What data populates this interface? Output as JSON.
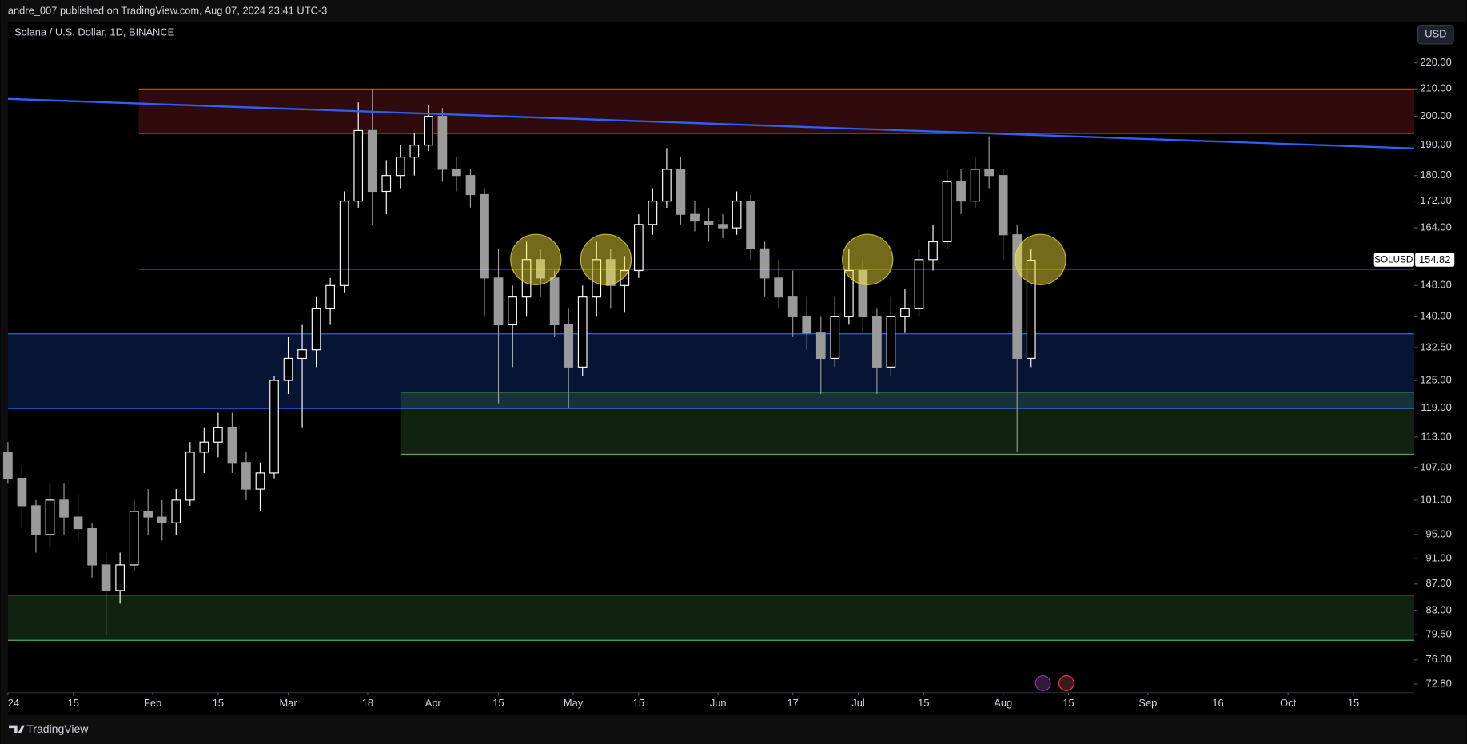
{
  "header": {
    "publisher": "andre_007 published on TradingView.com, Aug 07, 2024 23:41 UTC-3",
    "currency_button": "USD",
    "footer_logo": "TradingView"
  },
  "chart_data": {
    "type": "candlestick",
    "title": "Solana / U.S. Dollar, 1D, BINANCE",
    "symbol": "SOLUSD",
    "log_scale": true,
    "up_color": "#ffffff",
    "down_color": "#9a9a9a",
    "x": [
      "2024-01-01",
      "2024-01-04",
      "2024-01-07",
      "2024-01-10",
      "2024-01-13",
      "2024-01-16",
      "2024-01-19",
      "2024-01-22",
      "2024-01-25",
      "2024-01-28",
      "2024-01-31",
      "2024-02-03",
      "2024-02-06",
      "2024-02-09",
      "2024-02-12",
      "2024-02-15",
      "2024-02-18",
      "2024-02-21",
      "2024-02-24",
      "2024-02-27",
      "2024-03-01",
      "2024-03-04",
      "2024-03-07",
      "2024-03-10",
      "2024-03-13",
      "2024-03-16",
      "2024-03-19",
      "2024-03-22",
      "2024-03-25",
      "2024-03-28",
      "2024-03-31",
      "2024-04-03",
      "2024-04-06",
      "2024-04-09",
      "2024-04-12",
      "2024-04-15",
      "2024-04-18",
      "2024-04-21",
      "2024-04-24",
      "2024-04-27",
      "2024-04-30",
      "2024-05-03",
      "2024-05-06",
      "2024-05-09",
      "2024-05-12",
      "2024-05-15",
      "2024-05-18",
      "2024-05-21",
      "2024-05-24",
      "2024-05-27",
      "2024-05-30",
      "2024-06-02",
      "2024-06-05",
      "2024-06-08",
      "2024-06-11",
      "2024-06-14",
      "2024-06-17",
      "2024-06-20",
      "2024-06-23",
      "2024-06-26",
      "2024-06-29",
      "2024-07-02",
      "2024-07-05",
      "2024-07-08",
      "2024-07-11",
      "2024-07-14",
      "2024-07-17",
      "2024-07-20",
      "2024-07-23",
      "2024-07-26",
      "2024-07-29",
      "2024-08-01",
      "2024-08-04",
      "2024-08-07"
    ],
    "open": [
      110,
      105,
      100,
      95,
      101,
      98,
      96,
      90,
      86,
      90,
      99,
      98,
      97,
      101,
      110,
      112,
      115,
      108,
      103,
      106,
      125,
      130,
      132,
      142,
      148,
      172,
      195,
      175,
      180,
      186,
      190,
      200,
      182,
      180,
      174,
      150,
      138,
      145,
      155,
      150,
      138,
      128,
      145,
      155,
      148,
      152,
      165,
      172,
      182,
      168,
      166,
      165,
      164,
      172,
      158,
      150,
      145,
      140,
      136,
      130,
      140,
      152,
      140,
      128,
      140,
      142,
      155,
      160,
      178,
      172,
      182,
      180,
      162,
      130
    ],
    "high": [
      112,
      107,
      101,
      104,
      104,
      102,
      97,
      92,
      92,
      101,
      103,
      101,
      103,
      112,
      115,
      118,
      118,
      110,
      108,
      126,
      135,
      138,
      145,
      150,
      175,
      205,
      210,
      185,
      190,
      194,
      204,
      203,
      186,
      182,
      176,
      158,
      148,
      160,
      158,
      152,
      142,
      148,
      160,
      158,
      156,
      168,
      176,
      189,
      186,
      172,
      170,
      168,
      175,
      174,
      160,
      155,
      152,
      145,
      140,
      145,
      158,
      155,
      142,
      145,
      147,
      158,
      165,
      182,
      182,
      186,
      193,
      182,
      165,
      158
    ],
    "low": [
      104,
      96,
      92,
      93,
      95,
      94,
      88,
      79.5,
      84,
      89,
      95,
      94,
      95,
      100,
      106,
      109,
      106,
      101,
      99,
      105,
      122,
      115,
      128,
      138,
      146,
      170,
      165,
      168,
      176,
      180,
      188,
      178,
      175,
      170,
      140,
      120,
      128,
      140,
      145,
      135,
      119,
      126,
      140,
      142,
      141,
      150,
      162,
      170,
      165,
      163,
      160,
      161,
      162,
      155,
      145,
      142,
      135,
      132,
      122,
      128,
      138,
      136,
      122,
      126,
      136,
      140,
      152,
      158,
      168,
      170,
      176,
      155,
      110,
      128
    ],
    "close": [
      105,
      100,
      95,
      101,
      98,
      96,
      90,
      86,
      90,
      99,
      98,
      97,
      101,
      110,
      112,
      115,
      108,
      103,
      106,
      125,
      130,
      132,
      142,
      148,
      172,
      195,
      175,
      180,
      186,
      190,
      200,
      182,
      180,
      174,
      150,
      138,
      145,
      155,
      150,
      138,
      128,
      145,
      155,
      148,
      152,
      165,
      172,
      182,
      168,
      166,
      165,
      164,
      172,
      158,
      150,
      145,
      140,
      136,
      130,
      140,
      152,
      140,
      128,
      140,
      142,
      155,
      160,
      178,
      172,
      182,
      180,
      162,
      130,
      154.82
    ],
    "xlim": [
      "2024-01-01",
      "2024-10-28"
    ],
    "xticks": [
      {
        "value": "2024-01-01",
        "label": "24"
      },
      {
        "value": "2024-01-15",
        "label": "15"
      },
      {
        "value": "2024-02-01",
        "label": "Feb"
      },
      {
        "value": "2024-02-15",
        "label": "15"
      },
      {
        "value": "2024-03-01",
        "label": "Mar"
      },
      {
        "value": "2024-03-18",
        "label": "18"
      },
      {
        "value": "2024-04-01",
        "label": "Apr"
      },
      {
        "value": "2024-04-15",
        "label": "15"
      },
      {
        "value": "2024-05-01",
        "label": "May"
      },
      {
        "value": "2024-05-15",
        "label": "15"
      },
      {
        "value": "2024-06-01",
        "label": "Jun"
      },
      {
        "value": "2024-06-17",
        "label": "17"
      },
      {
        "value": "2024-07-01",
        "label": "Jul"
      },
      {
        "value": "2024-07-15",
        "label": "15"
      },
      {
        "value": "2024-08-01",
        "label": "Aug"
      },
      {
        "value": "2024-08-15",
        "label": "15"
      },
      {
        "value": "2024-09-01",
        "label": "Sep"
      },
      {
        "value": "2024-09-16",
        "label": "16"
      },
      {
        "value": "2024-10-01",
        "label": "Oct"
      },
      {
        "value": "2024-10-15",
        "label": "15"
      }
    ],
    "ylim": [
      68.9,
      236.4
    ],
    "yticks": [
      {
        "value": 220,
        "label": "220.00"
      },
      {
        "value": 210,
        "label": "210.00"
      },
      {
        "value": 200,
        "label": "200.00"
      },
      {
        "value": 190,
        "label": "190.00"
      },
      {
        "value": 180,
        "label": "180.00"
      },
      {
        "value": 172,
        "label": "172.00"
      },
      {
        "value": 164,
        "label": "164.00"
      },
      {
        "value": 148,
        "label": "148.00"
      },
      {
        "value": 140,
        "label": "140.00"
      },
      {
        "value": 132.5,
        "label": "132.50"
      },
      {
        "value": 125,
        "label": "125.00"
      },
      {
        "value": 119,
        "label": "119.00"
      },
      {
        "value": 113,
        "label": "113.00"
      },
      {
        "value": 107,
        "label": "107.00"
      },
      {
        "value": 101,
        "label": "101.00"
      },
      {
        "value": 95,
        "label": "95.00"
      },
      {
        "value": 91,
        "label": "91.00"
      },
      {
        "value": 87,
        "label": "87.00"
      },
      {
        "value": 83,
        "label": "83.00"
      },
      {
        "value": 79.5,
        "label": "79.50"
      },
      {
        "value": 76,
        "label": "76.00"
      },
      {
        "value": 72.8,
        "label": "72.80"
      }
    ],
    "zones": [
      {
        "from": "2024-01-29",
        "low": 194,
        "high": 210,
        "color": "#f23645"
      },
      {
        "from": "2024-01-01",
        "low": 118.9,
        "high": 135.8,
        "color": "#2962ff"
      },
      {
        "from": "2024-03-25",
        "low": 109.6,
        "high": 122.4,
        "color": "#4caf50"
      },
      {
        "from": "2024-01-01",
        "low": 78.7,
        "high": 85.3,
        "color": "#4caf50"
      }
    ],
    "hline": {
      "from": "2024-01-29",
      "price": 152.4,
      "color": "#ffeb3b"
    },
    "trendline": {
      "from": "2024-01-01",
      "from_price": 206.3,
      "to": "2024-10-28",
      "to_price": 188.9,
      "color": "#2962ff"
    },
    "circles": [
      {
        "x": "2024-04-23",
        "price": 155
      },
      {
        "x": "2024-05-08",
        "price": 155
      },
      {
        "x": "2024-07-03",
        "price": 155
      },
      {
        "x": "2024-08-09",
        "price": 155
      }
    ]
  }
}
